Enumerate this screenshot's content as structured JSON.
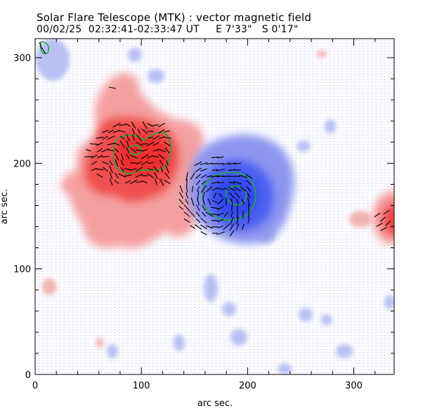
{
  "figure": {
    "title": "Solar Flare Telescope (MTK) : vector magnetic field",
    "subtitle": "00/02/25  02:32:41-02:33:47 UT     E 7'33\"   S 0'17\""
  },
  "chart_data": {
    "type": "heatmap",
    "xlabel": "arc sec.",
    "ylabel": "arc sec.",
    "xlim": [
      0,
      338
    ],
    "ylim": [
      0,
      318
    ],
    "x_ticks": [
      0,
      100,
      200,
      300
    ],
    "y_ticks": [
      0,
      100,
      200,
      300
    ],
    "colors": {
      "positive_polarity": "#f04a4a",
      "negative_polarity": "#4a5ef0",
      "contour": "#1faa3a",
      "vector": "#000000"
    },
    "overlays": [
      "longitudinal field (red/blue)",
      "contour (green)",
      "transverse field vectors (black)"
    ]
  }
}
